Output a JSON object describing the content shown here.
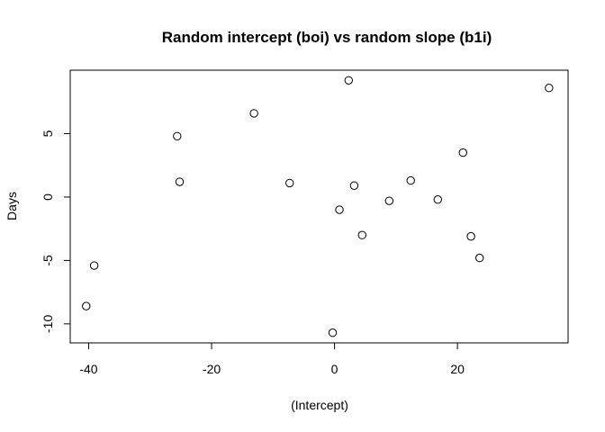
{
  "chart_data": {
    "type": "scatter",
    "title": "Random intercept (boi) vs random slope (b1i)",
    "xlabel": "(Intercept)",
    "ylabel": "Days",
    "xlim": [
      -43,
      38
    ],
    "ylim": [
      -11.5,
      10.0
    ],
    "x_ticks": [
      -40,
      -20,
      0,
      20
    ],
    "y_ticks": [
      -10,
      -5,
      0,
      5
    ],
    "grid": false,
    "marker": "open-circle",
    "points": [
      {
        "x": 2.3,
        "y": 9.2
      },
      {
        "x": 34.9,
        "y": 8.6
      },
      {
        "x": -13.1,
        "y": 6.6
      },
      {
        "x": -25.6,
        "y": 4.8
      },
      {
        "x": 20.9,
        "y": 3.5
      },
      {
        "x": 12.4,
        "y": 1.3
      },
      {
        "x": -25.2,
        "y": 1.2
      },
      {
        "x": -7.3,
        "y": 1.1
      },
      {
        "x": 3.2,
        "y": 0.9
      },
      {
        "x": 8.9,
        "y": -0.3
      },
      {
        "x": 16.8,
        "y": -0.2
      },
      {
        "x": 0.8,
        "y": -1.0
      },
      {
        "x": 4.5,
        "y": -3.0
      },
      {
        "x": 22.2,
        "y": -3.1
      },
      {
        "x": 23.6,
        "y": -4.8
      },
      {
        "x": -39.1,
        "y": -5.4
      },
      {
        "x": -40.4,
        "y": -8.6
      },
      {
        "x": -0.3,
        "y": -10.7
      }
    ]
  }
}
